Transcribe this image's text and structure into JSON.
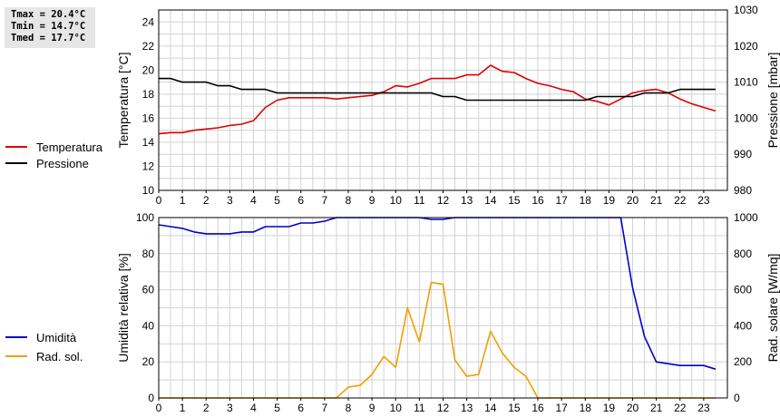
{
  "stats": [
    "Tmax = 20.4°C",
    "Tmin = 14.7°C",
    "Tmed = 17.7°C"
  ],
  "colors": {
    "temp": "#dd0000",
    "press": "#000000",
    "hum": "#0000cc",
    "rad": "#eea000",
    "grid": "#d2d2d2"
  },
  "chart_data": [
    {
      "type": "line",
      "xlabel": "",
      "ylabel": "Temperatura [°C]",
      "ylabel2": "Pressione [mbar]",
      "xlim": [
        0,
        24
      ],
      "ylim": [
        10,
        25
      ],
      "y2lim": [
        980,
        1030
      ],
      "xticks": [
        0,
        1,
        2,
        3,
        4,
        5,
        6,
        7,
        8,
        9,
        10,
        11,
        12,
        13,
        14,
        15,
        16,
        17,
        18,
        19,
        20,
        21,
        22,
        23
      ],
      "yticks": [
        10,
        12,
        14,
        16,
        18,
        20,
        22,
        24
      ],
      "y2ticks": [
        980,
        990,
        1000,
        1010,
        1020,
        1030
      ],
      "grid": true,
      "legend_position": "left",
      "series": [
        {
          "name": "Temperatura",
          "axis": "left",
          "color": "#dd0000",
          "x": [
            0,
            0.5,
            1,
            1.5,
            2,
            2.5,
            3,
            3.5,
            4,
            4.5,
            5,
            5.5,
            6,
            6.5,
            7,
            7.5,
            8,
            8.5,
            9,
            9.5,
            10,
            10.5,
            11,
            11.5,
            12,
            12.5,
            13,
            13.5,
            14,
            14.5,
            15,
            15.5,
            16,
            16.5,
            17,
            17.5,
            18,
            18.5,
            19,
            19.5,
            20,
            20.5,
            21,
            21.5,
            22,
            22.5,
            23,
            23.5
          ],
          "y": [
            14.7,
            14.8,
            14.8,
            15.0,
            15.1,
            15.2,
            15.4,
            15.5,
            15.8,
            16.9,
            17.5,
            17.7,
            17.7,
            17.7,
            17.7,
            17.6,
            17.7,
            17.8,
            17.9,
            18.2,
            18.7,
            18.6,
            18.9,
            19.3,
            19.3,
            19.3,
            19.6,
            19.6,
            20.4,
            19.9,
            19.8,
            19.3,
            18.9,
            18.7,
            18.4,
            18.2,
            17.6,
            17.4,
            17.1,
            17.6,
            18.1,
            18.3,
            18.4,
            18.1,
            17.6,
            17.2,
            16.9,
            16.6
          ]
        },
        {
          "name": "Pressione",
          "axis": "right",
          "color": "#000000",
          "x": [
            0,
            0.5,
            1,
            1.5,
            2,
            2.5,
            3,
            3.5,
            4,
            4.5,
            5,
            5.5,
            6,
            6.5,
            7,
            7.5,
            8,
            8.5,
            9,
            9.5,
            10,
            10.5,
            11,
            11.5,
            12,
            12.5,
            13,
            13.5,
            14,
            14.5,
            15,
            15.5,
            16,
            16.5,
            17,
            17.5,
            18,
            18.5,
            19,
            19.5,
            20,
            20.5,
            21,
            21.5,
            22,
            22.5,
            23,
            23.5
          ],
          "y": [
            1011,
            1011,
            1010,
            1010,
            1010,
            1009,
            1009,
            1008,
            1008,
            1008,
            1007,
            1007,
            1007,
            1007,
            1007,
            1007,
            1007,
            1007,
            1007,
            1007,
            1007,
            1007,
            1007,
            1007,
            1006,
            1006,
            1005,
            1005,
            1005,
            1005,
            1005,
            1005,
            1005,
            1005,
            1005,
            1005,
            1005,
            1006,
            1006,
            1006,
            1006,
            1007,
            1007,
            1007,
            1008,
            1008,
            1008,
            1008
          ]
        }
      ]
    },
    {
      "type": "line",
      "xlabel": "",
      "ylabel": "Umidità relativa [%]",
      "ylabel2": "Rad. solare [W/mq]",
      "xlim": [
        0,
        24
      ],
      "ylim": [
        0,
        100
      ],
      "y2lim": [
        0,
        1000
      ],
      "xticks": [
        0,
        1,
        2,
        3,
        4,
        5,
        6,
        7,
        8,
        9,
        10,
        11,
        12,
        13,
        14,
        15,
        16,
        17,
        18,
        19,
        20,
        21,
        22,
        23
      ],
      "yticks": [
        0,
        20,
        40,
        60,
        80,
        100
      ],
      "y2ticks": [
        0,
        200,
        400,
        600,
        800,
        1000
      ],
      "grid": true,
      "legend_position": "left",
      "series": [
        {
          "name": "Umidità",
          "axis": "left",
          "color": "#0000cc",
          "x": [
            0,
            0.5,
            1,
            1.5,
            2,
            2.5,
            3,
            3.5,
            4,
            4.5,
            5,
            5.5,
            6,
            6.5,
            7,
            7.5,
            8,
            11,
            11.5,
            12,
            12.5,
            19.5,
            20,
            20.5,
            21,
            21.5,
            22,
            22.5,
            23,
            23.5
          ],
          "y": [
            96,
            95,
            94,
            92,
            91,
            91,
            91,
            92,
            92,
            95,
            95,
            95,
            97,
            97,
            98,
            100,
            100,
            100,
            99,
            99,
            100,
            100,
            61,
            34,
            20,
            19,
            18,
            18,
            18,
            16
          ]
        },
        {
          "name": "Rad. sol.",
          "axis": "right",
          "color": "#eea000",
          "x": [
            0,
            0.5,
            1,
            1.5,
            2,
            2.5,
            3,
            3.5,
            4,
            4.5,
            5,
            5.5,
            6,
            6.5,
            7,
            7.5,
            8,
            8.5,
            9,
            9.5,
            10,
            10.5,
            11,
            11.5,
            12,
            12.5,
            13,
            13.5,
            14,
            14.5,
            15,
            15.5,
            16,
            16.5,
            17,
            17.5,
            18,
            18.5,
            19,
            19.5,
            20,
            20.5,
            21,
            21.5,
            22,
            22.5,
            23,
            23.5
          ],
          "y": [
            0,
            0,
            0,
            0,
            0,
            0,
            0,
            0,
            0,
            0,
            0,
            0,
            0,
            0,
            0,
            0,
            60,
            70,
            130,
            230,
            170,
            500,
            310,
            640,
            630,
            210,
            120,
            130,
            370,
            250,
            170,
            120,
            0,
            0,
            0,
            0,
            0,
            0,
            0,
            0,
            0,
            0,
            0,
            0,
            0,
            0,
            0,
            0
          ]
        }
      ]
    }
  ]
}
